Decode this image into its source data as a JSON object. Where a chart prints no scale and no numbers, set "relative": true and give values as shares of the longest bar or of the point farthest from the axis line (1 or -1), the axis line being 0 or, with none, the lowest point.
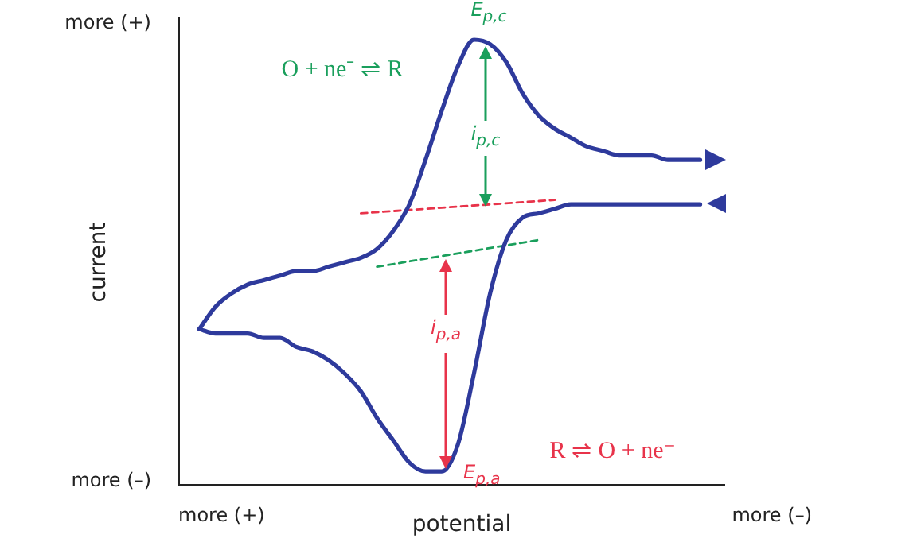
{
  "chart_data": {
    "type": "line",
    "relative": true,
    "xlabel": "potential",
    "ylabel": "current",
    "grid": false,
    "legend": false,
    "marker": "none",
    "tick_labels": false,
    "categories": [
      null,
      null,
      null,
      null,
      null,
      null,
      null,
      null,
      null,
      null,
      null,
      null,
      null,
      null,
      null,
      null,
      null,
      null,
      null,
      null,
      null,
      null,
      null,
      null,
      null,
      null,
      null,
      null,
      null,
      null,
      null,
      null
    ],
    "series": [
      {
        "color": "#2e3a9c",
        "line_style": "solid",
        "values": [
          0.35,
          0.4,
          0.43,
          0.45,
          0.46,
          0.47,
          0.48,
          0.48,
          0.49,
          0.5,
          0.51,
          0.53,
          0.57,
          0.63,
          0.73,
          0.84,
          0.94,
          1.0,
          0.99,
          0.95,
          0.88,
          0.83,
          0.8,
          0.78,
          0.76,
          0.75,
          0.74,
          0.74,
          0.74,
          0.73,
          0.73,
          0.73
        ]
      },
      {
        "color": "#2e3a9c",
        "line_style": "solid",
        "values": [
          0.35,
          0.34,
          0.34,
          0.34,
          0.33,
          0.33,
          0.31,
          0.3,
          0.28,
          0.25,
          0.21,
          0.15,
          0.1,
          0.05,
          0.03,
          0.03,
          0.09,
          0.25,
          0.43,
          0.55,
          0.6,
          0.61,
          0.62,
          0.63,
          0.63,
          0.63,
          0.63,
          0.63,
          0.63,
          0.63,
          0.63,
          0.63
        ]
      },
      {
        "color": "#e8334a",
        "line_style": "dashed",
        "values": [
          null,
          null,
          null,
          null,
          null,
          null,
          null,
          null,
          null,
          null,
          0.61,
          null,
          null,
          null,
          null,
          null,
          null,
          null,
          null,
          null,
          null,
          null,
          0.64,
          null,
          null,
          null,
          null,
          null,
          null,
          null,
          null,
          null
        ]
      },
      {
        "color": "#1a9f5c",
        "line_style": "dashed",
        "values": [
          null,
          null,
          null,
          null,
          null,
          null,
          null,
          null,
          null,
          null,
          null,
          0.49,
          null,
          null,
          null,
          null,
          null,
          null,
          null,
          null,
          null,
          0.55,
          null,
          null,
          null,
          null,
          null,
          null,
          null,
          null,
          null,
          null
        ]
      }
    ],
    "annotations": [
      "more (+)",
      "more (–)",
      "more (+)",
      "more (–)",
      "E$_{p,c}$",
      "i$_{p,c}$",
      "i$_{p,a}$",
      "E$_{p,a}$",
      "O + ne⁻ ⇌ R",
      "R ⇌ O + ne⁻"
    ]
  }
}
